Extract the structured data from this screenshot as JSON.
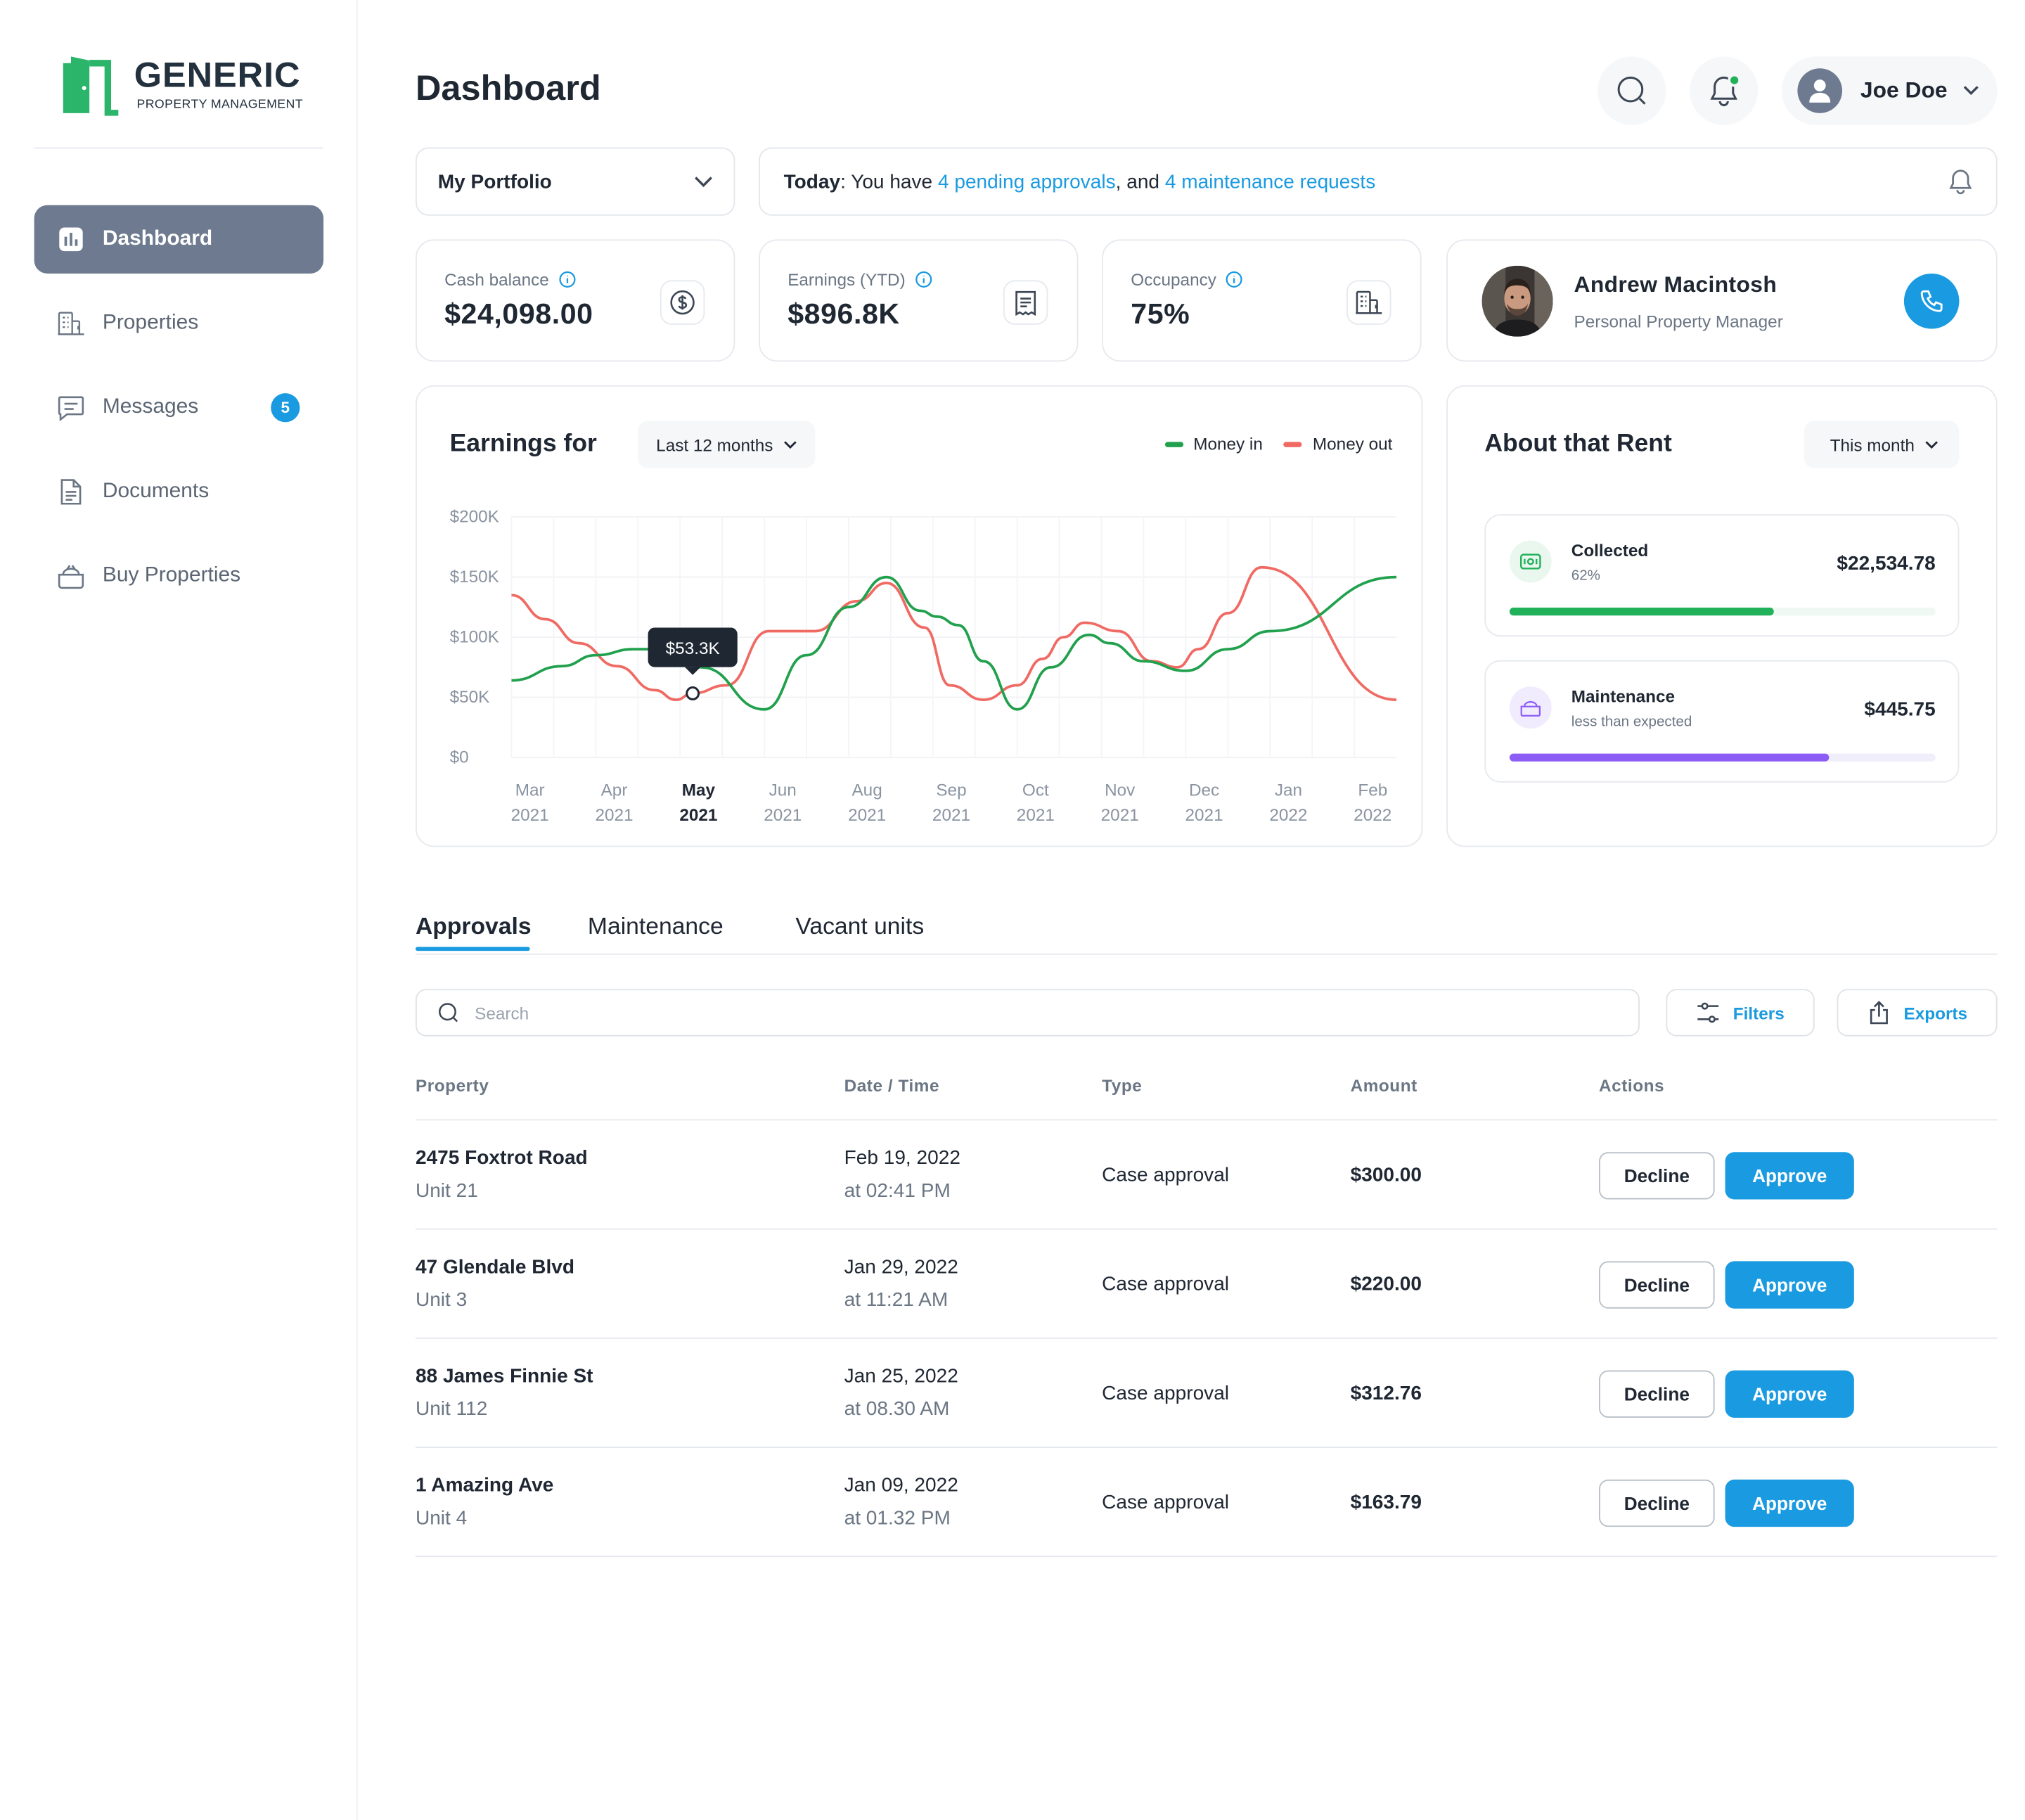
{
  "brand": {
    "name": "GENERIC",
    "tagline": "PROPERTY MANAGEMENT",
    "color": "#2bb56b"
  },
  "sidebar": {
    "items": [
      {
        "label": "Dashboard",
        "icon": "dashboard-icon",
        "active": true
      },
      {
        "label": "Properties",
        "icon": "building-icon"
      },
      {
        "label": "Messages",
        "icon": "chat-icon",
        "badge": "5"
      },
      {
        "label": "Documents",
        "icon": "document-icon"
      },
      {
        "label": "Buy Properties",
        "icon": "basket-icon"
      }
    ]
  },
  "header": {
    "title": "Dashboard",
    "user_name": "Joe Doe",
    "search_icon": "search-icon",
    "notification_icon": "bell-icon"
  },
  "portfolio": {
    "selected": "My Portfolio"
  },
  "today": {
    "label": "Today",
    "text_a": ": You have ",
    "approvals_link": "4 pending approvals",
    "text_b": ", and ",
    "maintenance_link": "4 maintenance requests"
  },
  "stats": [
    {
      "label": "Cash balance",
      "value": "$24,098.00",
      "icon": "dollar-icon"
    },
    {
      "label": "Earnings (YTD)",
      "value": "$896.8K",
      "icon": "receipt-icon"
    },
    {
      "label": "Occupancy",
      "value": "75%",
      "icon": "building-icon"
    }
  ],
  "manager": {
    "name": "Andrew Macintosh",
    "role": "Personal Property Manager"
  },
  "earnings": {
    "title": "Earnings for",
    "range": "Last 12 months",
    "legend_in": "Money in",
    "legend_out": "Money out",
    "tooltip": "$53.3K"
  },
  "chart_data": {
    "type": "line",
    "y_ticks": [
      "$200K",
      "$150K",
      "$100K",
      "$50K",
      "$0"
    ],
    "ylim": [
      0,
      200000
    ],
    "x_labels": [
      [
        "Mar",
        "2021"
      ],
      [
        "Apr",
        "2021"
      ],
      [
        "May",
        "2021"
      ],
      [
        "Jun",
        "2021"
      ],
      [
        "Aug",
        "2021"
      ],
      [
        "Sep",
        "2021"
      ],
      [
        "Oct",
        "2021"
      ],
      [
        "Nov",
        "2021"
      ],
      [
        "Dec",
        "2021"
      ],
      [
        "Jan",
        "2022"
      ],
      [
        "Feb",
        "2022"
      ]
    ],
    "highlight_index": 2,
    "grid": true,
    "series": [
      {
        "name": "Money in",
        "color": "#21a04d",
        "x": [
          0,
          0.6,
          1.0,
          1.45,
          1.92,
          2.25,
          3.0,
          3.5,
          4.0,
          4.45,
          4.85,
          5.05,
          5.3,
          5.6,
          6.0,
          6.4,
          6.85,
          7.1,
          7.5,
          8.0,
          8.5,
          9.0,
          10.5
        ],
        "values": [
          64000,
          76000,
          85000,
          90000,
          90000,
          75000,
          40000,
          85000,
          125000,
          150000,
          122000,
          117000,
          110000,
          80000,
          40000,
          75000,
          102000,
          95000,
          80000,
          72000,
          90000,
          105000,
          150000
        ]
      },
      {
        "name": "Money out",
        "color": "#f06a64",
        "x": [
          0,
          0.4,
          0.8,
          1.25,
          1.7,
          1.95,
          2.15,
          2.55,
          3.05,
          3.6,
          4.1,
          4.45,
          4.9,
          5.2,
          5.6,
          6.0,
          6.3,
          6.55,
          6.8,
          7.2,
          7.6,
          7.9,
          8.15,
          8.5,
          8.9,
          10.5
        ],
        "values": [
          135000,
          115000,
          95000,
          76000,
          56000,
          48000,
          53300,
          60000,
          105000,
          105000,
          130000,
          145000,
          108000,
          60000,
          48000,
          60000,
          82000,
          100000,
          112000,
          105000,
          80000,
          75000,
          90000,
          120000,
          158000,
          48000
        ]
      }
    ]
  },
  "rent": {
    "title": "About that Rent",
    "period": "This month",
    "items": [
      {
        "name": "Collected",
        "sub": "62%",
        "amount": "$22,534.78",
        "progress": 0.62,
        "color": "#21b15a",
        "track": "#eff8f2",
        "icon": "cash-icon"
      },
      {
        "name": "Maintenance",
        "sub": "less than expected",
        "amount": "$445.75",
        "progress": 0.75,
        "color": "#8b5cf6",
        "track": "#f1eefb",
        "icon": "toolbox-icon"
      }
    ]
  },
  "tabs": [
    {
      "label": "Approvals",
      "active": true
    },
    {
      "label": "Maintenance"
    },
    {
      "label": "Vacant units"
    }
  ],
  "toolbar": {
    "search_placeholder": "Search",
    "filters_label": "Filters",
    "exports_label": "Exports"
  },
  "table": {
    "headers": [
      "Property",
      "Date / Time",
      "Type",
      "Amount",
      "Actions"
    ],
    "decline_label": "Decline",
    "approve_label": "Approve",
    "rows": [
      {
        "property": "2475 Foxtrot Road",
        "unit": "Unit 21",
        "date": "Feb 19, 2022",
        "time": "at 02:41 PM",
        "type": "Case approval",
        "amount": "$300.00"
      },
      {
        "property": "47 Glendale Blvd",
        "unit": "Unit 3",
        "date": "Jan 29, 2022",
        "time": "at 11:21 AM",
        "type": "Case approval",
        "amount": "$220.00"
      },
      {
        "property": "88 James Finnie St",
        "unit": "Unit 112",
        "date": "Jan 25, 2022",
        "time": "at 08.30 AM",
        "type": "Case approval",
        "amount": "$312.76"
      },
      {
        "property": "1 Amazing Ave",
        "unit": "Unit 4",
        "date": "Jan 09, 2022",
        "time": "at 01.32 PM",
        "type": "Case approval",
        "amount": "$163.79"
      }
    ]
  }
}
